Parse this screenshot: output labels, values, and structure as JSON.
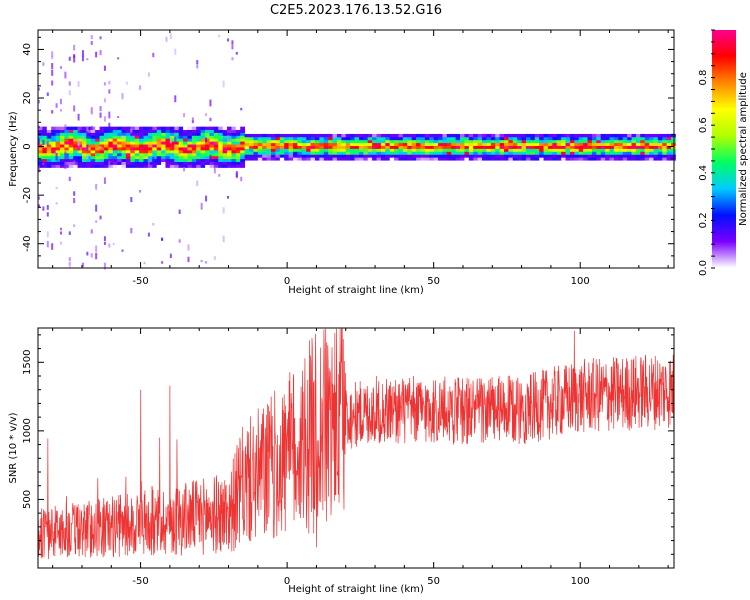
{
  "figure": {
    "title": "C2E5.2023.176.13.52.G16"
  },
  "chart_data": [
    {
      "type": "heatmap",
      "title": "C2E5.2023.176.13.52.G16",
      "xlabel": "Height of straight line (km)",
      "ylabel": "Frequency (Hz)",
      "xlim": [
        -85,
        132
      ],
      "ylim": [
        -50,
        48
      ],
      "x_ticks": [
        "-50",
        "0",
        "50",
        "100"
      ],
      "y_ticks": [
        "40",
        "20",
        "0",
        "-20",
        "-40"
      ],
      "colorbar": {
        "label": "Normalized spectral amplitude",
        "range": [
          0.0,
          1.0
        ],
        "ticks": [
          "0.0",
          "0.2",
          "0.4",
          "0.6",
          "0.8"
        ],
        "colormap": [
          "#ffffff",
          "#7a00ff",
          "#0010ff",
          "#00ccff",
          "#00ff60",
          "#b0ff00",
          "#ffff00",
          "#ff8800",
          "#ff0000",
          "#ff0090"
        ]
      },
      "band": {
        "center_freq_hz": 0,
        "width_hz_left": 8,
        "width_hz_right": 5,
        "transition_km": -15
      }
    },
    {
      "type": "line",
      "xlabel": "Height of straight line (km)",
      "ylabel": "SNR (10 * v/v)",
      "xlim": [
        -85,
        132
      ],
      "ylim": [
        0,
        1750
      ],
      "x_ticks": [
        "-50",
        "0",
        "50",
        "100"
      ],
      "y_ticks": [
        "1500",
        "1000",
        "500"
      ],
      "color": "#ee3333",
      "trend": {
        "x": [
          -85,
          -60,
          -40,
          -20,
          -15,
          0,
          10,
          20,
          30,
          50,
          80,
          100,
          132
        ],
        "y": [
          250,
          300,
          350,
          400,
          600,
          800,
          1000,
          1100,
          1150,
          1150,
          1150,
          1250,
          1300
        ]
      },
      "spikes": [
        {
          "x": -50,
          "y": 1300
        },
        {
          "x": -40,
          "y": 1330
        },
        {
          "x": 8,
          "y": 1550
        },
        {
          "x": 10,
          "y": 150
        },
        {
          "x": 98,
          "y": 1730
        }
      ]
    }
  ]
}
